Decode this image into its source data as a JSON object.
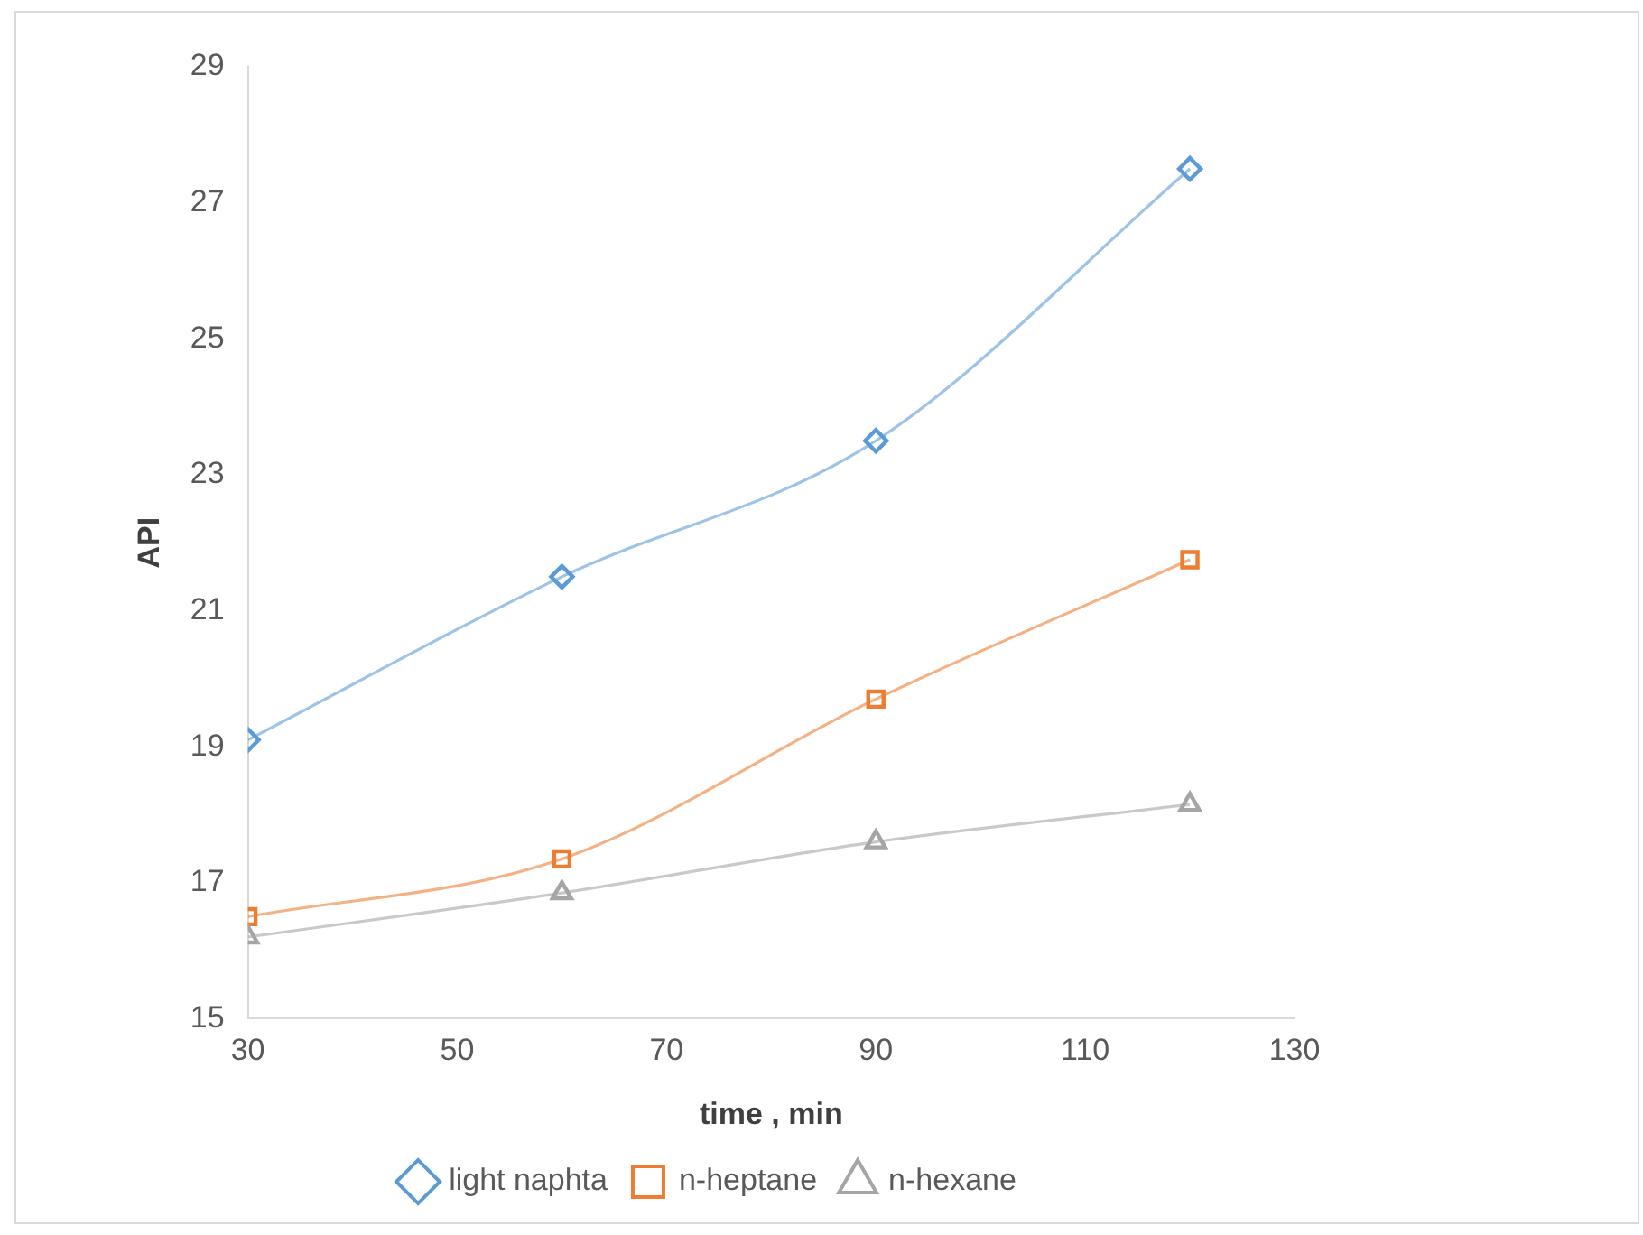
{
  "chart_data": {
    "type": "line",
    "xlabel": "time , min",
    "ylabel": "API",
    "x": [
      30,
      60,
      90,
      120
    ],
    "xlim": [
      30,
      130
    ],
    "xticks": [
      30,
      50,
      70,
      90,
      110,
      130
    ],
    "ylim": [
      15,
      29
    ],
    "yticks": [
      15,
      17,
      19,
      21,
      23,
      25,
      27,
      29
    ],
    "grid": false,
    "legend": "bottom",
    "series": [
      {
        "name": "light naphta",
        "color": "#5b9bd5",
        "marker": "diamond",
        "values": [
          19.1,
          21.5,
          23.5,
          27.5
        ]
      },
      {
        "name": "n-heptane",
        "color": "#ed7d31",
        "marker": "square",
        "values": [
          16.5,
          17.35,
          19.7,
          21.75
        ]
      },
      {
        "name": "n-hexane",
        "color": "#a5a5a5",
        "marker": "triangle",
        "values": [
          16.2,
          16.85,
          17.6,
          18.15
        ]
      }
    ]
  }
}
